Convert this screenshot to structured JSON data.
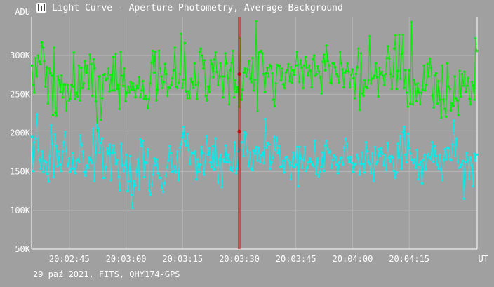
{
  "window": {
    "title": "Light Curve - Aperture Photometry, Average Background",
    "icon": "light-curve-app-icon"
  },
  "footer": {
    "info": "29 paź 2021, FITS, QHY174-GPS"
  },
  "colors": {
    "background": "#a0a0a0",
    "grid": "#b4b4b4",
    "axis": "#ffffff",
    "green_series": "#00ee00",
    "cyan_series": "#00f0f0",
    "cursor": "#cc0000"
  },
  "chart_data": {
    "type": "line",
    "title": "Light Curve - Aperture Photometry, Average Background",
    "ylabel": "ADU",
    "xlabel": "UT",
    "ylim": [
      50000,
      350000
    ],
    "xlim": [
      "20:02:35",
      "20:04:33"
    ],
    "y_ticks": [
      {
        "value": 50000,
        "label": "50K"
      },
      {
        "value": 100000,
        "label": "100K"
      },
      {
        "value": 150000,
        "label": "150K"
      },
      {
        "value": 200000,
        "label": "200K"
      },
      {
        "value": 250000,
        "label": "250K"
      },
      {
        "value": 300000,
        "label": "300K"
      }
    ],
    "x_ticks": [
      "20:02:45",
      "20:03:00",
      "20:03:15",
      "20:03:30",
      "20:03:45",
      "20:04:00",
      "20:04:15"
    ],
    "grid": true,
    "cursor": {
      "time": "20:03:30",
      "values": [
        276000,
        202000
      ]
    },
    "series": [
      {
        "color": "#00ee00",
        "values": [
          287000,
          262000,
          252000,
          297000,
          273000,
          300000,
          292000,
          289000,
          317000,
          310000,
          293000,
          260000,
          285000,
          238000,
          283000,
          277000,
          274000,
          223000,
          310000,
          226000,
          222000,
          273000,
          269000,
          253000,
          274000,
          246000,
          263000,
          263000,
          229000,
          262000,
          242000,
          244000,
          262000,
          260000,
          304000,
          244000,
          252000,
          247000,
          287000,
          242000,
          284000,
          258000,
          264000,
          293000,
          278000,
          287000,
          257000,
          301000,
          289000,
          248000,
          295000,
          283000,
          241000,
          203000,
          273000,
          273000,
          217000,
          245000,
          275000,
          276000,
          268000,
          270000,
          283000,
          254000,
          275000,
          255000,
          298000,
          255000,
          302000,
          257000,
          262000,
          231000,
          305000,
          274000,
          261000,
          283000,
          241000,
          252000,
          260000,
          252000,
          266000,
          256000,
          264000,
          256000,
          246000,
          261000,
          258000,
          272000,
          246000,
          255000,
          267000,
          244000,
          248000,
          244000,
          232000,
          244000,
          264000,
          291000,
          306000,
          278000,
          305000,
          242000,
          256000,
          306000,
          283000,
          273000,
          258000,
          266000,
          289000,
          276000,
          248000,
          259000,
          258000,
          262000,
          271000,
          281000,
          310000,
          260000,
          258000,
          265000,
          276000,
          328000,
          258000,
          269000,
          316000,
          254000,
          245000,
          254000,
          245000,
          270000,
          266000,
          258000,
          290000,
          262000,
          244000,
          265000,
          305000,
          309000,
          300000,
          283000,
          294000,
          248000,
          242000,
          260000,
          253000,
          294000,
          289000,
          272000,
          295000,
          304000,
          279000,
          262000,
          273000,
          290000,
          273000,
          246000,
          273000,
          303000,
          290000,
          271000,
          237000,
          281000,
          291000,
          306000,
          246000,
          268000,
          253000,
          259000,
          234000,
          322000,
          243000,
          256000,
          278000,
          283000,
          273000,
          282000,
          293000,
          270000,
          266000,
          297000,
          255000,
          269000,
          344000,
          228000,
          304000,
          305000,
          306000,
          303000,
          276000,
          253000,
          277000,
          284000,
          273000,
          288000,
          286000,
          277000,
          243000,
          235000,
          264000,
          288000,
          286000,
          287000,
          268000,
          283000,
          263000,
          258000,
          278000,
          281000,
          289000,
          267000,
          285000,
          265000,
          281000,
          275000,
          287000,
          305000,
          288000,
          266000,
          294000,
          284000,
          258000,
          287000,
          298000,
          284000,
          274000,
          287000,
          280000,
          259000,
          295000,
          300000,
          274000,
          276000,
          286000,
          279000,
          272000,
          251000,
          292000,
          301000,
          281000,
          313000,
          293000,
          287000,
          265000,
          264000,
          290000,
          290000,
          285000,
          276000,
          273000,
          265000,
          305000,
          290000,
          282000,
          259000,
          278000,
          280000,
          290000,
          279000,
          259000,
          275000,
          282000,
          271000,
          245000,
          276000,
          285000,
          309000,
          230000,
          303000,
          251000,
          248000,
          268000,
          260000,
          258000,
          268000,
          325000,
          264000,
          270000,
          271000,
          274000,
          290000,
          272000,
          247000,
          284000,
          276000,
          279000,
          274000,
          262000,
          276000,
          297000,
          312000,
          296000,
          276000,
          257000,
          273000,
          309000,
          326000,
          257000,
          280000,
          327000,
          270000,
          302000,
          327000,
          258000,
          281000,
          252000,
          234000,
          281000,
          238000,
          343000,
          237000,
          269000,
          263000,
          241000,
          264000,
          252000,
          237000,
          252000,
          256000,
          287000,
          255000,
          262000,
          289000,
          273000,
          296000,
          284000,
          249000,
          233000,
          274000,
          277000,
          238000,
          267000,
          243000,
          220000,
          287000,
          243000,
          231000,
          221000,
          290000,
          260000,
          257000,
          229000,
          238000,
          235000,
          273000,
          245000,
          242000,
          223000,
          280000,
          247000,
          276000,
          261000,
          279000,
          253000,
          261000,
          271000,
          244000,
          237000,
          266000,
          261000,
          243000,
          322000,
          306000
        ]
      },
      {
        "color": "#00f0f0",
        "values": [
          195000,
          151000,
          188000,
          193000,
          224000,
          178000,
          165000,
          154000,
          176000,
          150000,
          164000,
          162000,
          147000,
          137000,
          170000,
          210000,
          186000,
          143000,
          198000,
          183000,
          157000,
          176000,
          159000,
          151000,
          176000,
          188000,
          201000,
          177000,
          157000,
          167000,
          150000,
          154000,
          174000,
          154000,
          148000,
          164000,
          166000,
          162000,
          197000,
          185000,
          176000,
          150000,
          145000,
          158000,
          155000,
          168000,
          165000,
          161000,
          206000,
          138000,
          175000,
          211000,
          206000,
          175000,
          187000,
          193000,
          142000,
          142000,
          156000,
          180000,
          173000,
          185000,
          139000,
          174000,
          184000,
          175000,
          160000,
          165000,
          143000,
          126000,
          186000,
          158000,
          151000,
          158000,
          172000,
          125000,
          137000,
          170000,
          120000,
          103000,
          138000,
          132000,
          151000,
          166000,
          127000,
          192000,
          183000,
          190000,
          143000,
          162000,
          161000,
          179000,
          126000,
          120000,
          133000,
          146000,
          167000,
          158000,
          166000,
          148000,
          142000,
          142000,
          129000,
          124000,
          135000,
          145000,
          155000,
          164000,
          183000,
          174000,
          150000,
          151000,
          157000,
          149000,
          176000,
          139000,
          181000,
          185000,
          194000,
          208000,
          189000,
          184000,
          199000,
          178000,
          160000,
          175000,
          174000,
          173000,
          176000,
          140000,
          166000,
          150000,
          159000,
          182000,
          174000,
          146000,
          163000,
          196000,
          172000,
          180000,
          162000,
          156000,
          183000,
          153000,
          193000,
          158000,
          136000,
          166000,
          172000,
          130000,
          166000,
          163000,
          184000,
          162000,
          172000,
          162000,
          153000,
          151000,
          155000,
          188000,
          148000,
          154000,
          176000,
          179000,
          188000,
          188000,
          170000,
          201000,
          199000,
          177000,
          157000,
          175000,
          154000,
          152000,
          177000,
          173000,
          182000,
          164000,
          181000,
          162000,
          171000,
          175000,
          161000,
          218000,
          181000,
          187000,
          185000,
          154000,
          162000,
          168000,
          195000,
          178000,
          194000,
          174000,
          183000,
          156000,
          157000,
          164000,
          149000,
          168000,
          169000,
          165000,
          162000,
          140000,
          158000,
          175000,
          156000,
          159000,
          182000,
          131000,
          182000,
          167000,
          155000,
          165000,
          182000,
          151000,
          155000,
          162000,
          167000,
          163000,
          159000,
          157000,
          190000,
          147000,
          167000,
          144000,
          150000,
          156000,
          175000,
          151000,
          184000,
          190000,
          179000,
          175000,
          176000,
          155000,
          165000,
          171000,
          169000,
          159000,
          148000,
          162000,
          167000,
          168000,
          159000,
          181000,
          193000,
          186000,
          168000,
          162000,
          169000,
          161000,
          150000,
          159000,
          160000,
          172000,
          167000,
          146000,
          160000,
          175000,
          160000,
          149000,
          188000,
          176000,
          163000,
          160000,
          148000,
          174000,
          138000,
          182000,
          160000,
          163000,
          179000,
          170000,
          180000,
          173000,
          158000,
          171000,
          152000,
          187000,
          168000,
          163000,
          170000,
          168000,
          151000,
          142000,
          149000,
          186000,
          168000,
          196000,
          154000,
          201000,
          208000,
          172000,
          162000,
          199000,
          180000,
          173000,
          165000,
          161000,
          166000,
          155000,
          178000,
          140000,
          159000,
          163000,
          135000,
          165000,
          172000,
          153000,
          170000,
          173000,
          168000,
          166000,
          188000,
          163000,
          183000,
          170000,
          159000,
          154000,
          172000,
          153000,
          139000,
          165000,
          179000,
          166000,
          181000,
          180000,
          166000,
          165000,
          185000,
          216000,
          170000,
          193000,
          163000,
          155000,
          156000,
          159000,
          164000,
          115000,
          162000,
          174000,
          164000,
          141000,
          168000,
          158000,
          131000,
          173000,
          164000,
          172000
        ]
      }
    ]
  }
}
